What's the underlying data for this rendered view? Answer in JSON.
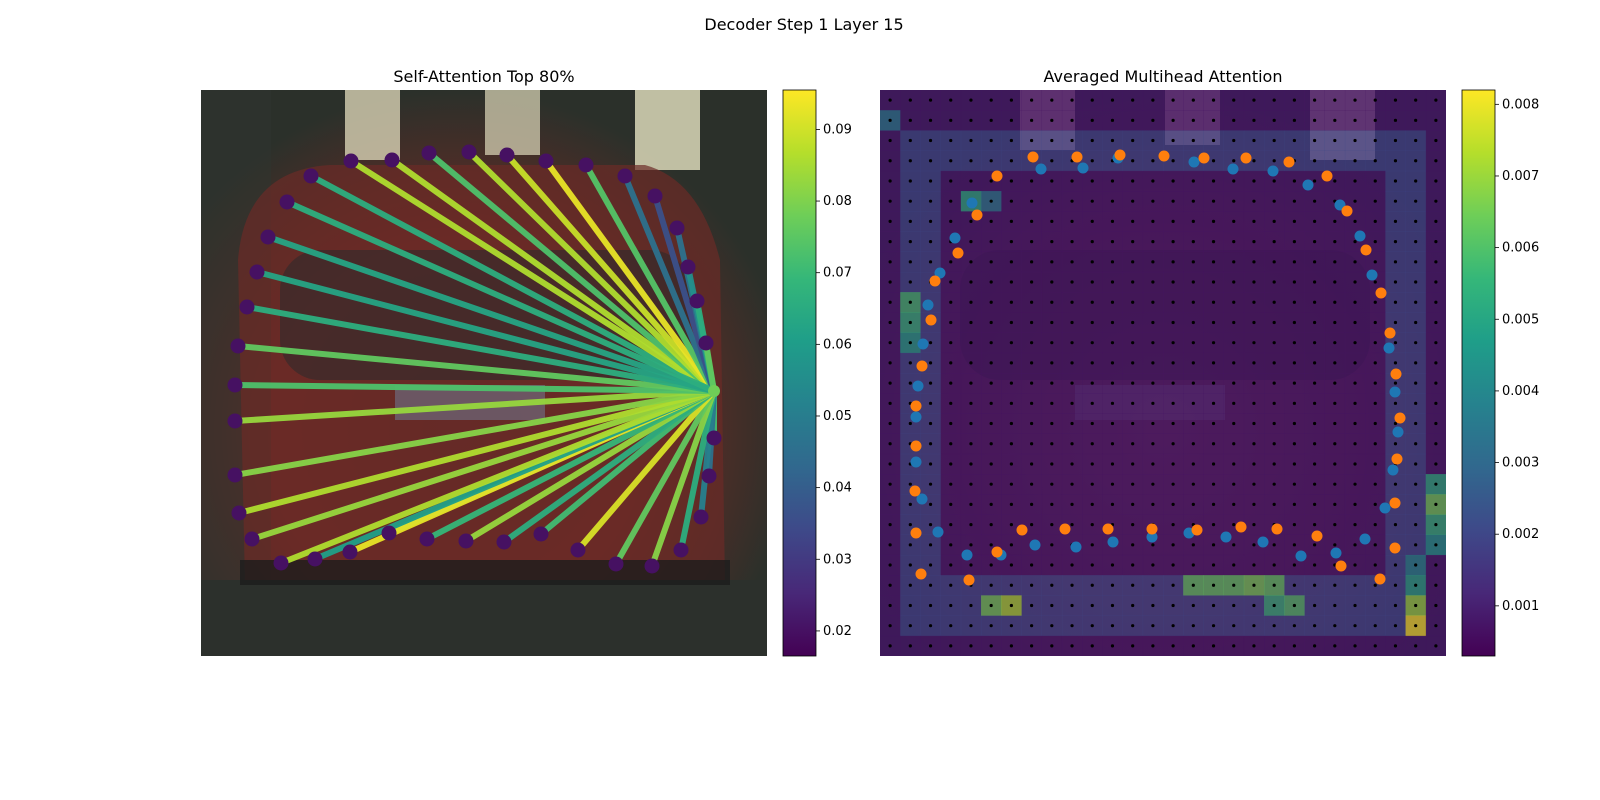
{
  "figure": {
    "suptitle": "Decoder Step 1 Layer 15"
  },
  "colors": {
    "viridis": [
      "#440154",
      "#482878",
      "#3e4989",
      "#31688e",
      "#26828e",
      "#1f9e89",
      "#35b779",
      "#6ece58",
      "#b5de2b",
      "#fde725"
    ],
    "orange_points": "#ff7f0e",
    "blue_points": "#1f77b4",
    "grid_dots": "#000000"
  },
  "chart_data": [
    {
      "type": "line",
      "title": "Self-Attention Top 80%",
      "description_of_marks": "edges from a single anchor vertex to polygon vertices, colored by attention weight",
      "colorbar": {
        "min": 0.0165,
        "max": 0.0955,
        "ticks": [
          "0.02",
          "0.03",
          "0.04",
          "0.05",
          "0.06",
          "0.07",
          "0.08",
          "0.09"
        ],
        "tick_values": [
          0.02,
          0.03,
          0.04,
          0.05,
          0.06,
          0.07,
          0.08,
          0.09
        ]
      },
      "anchor": [
        513,
        301
      ],
      "vertices": [
        [
          110,
          86
        ],
        [
          150,
          71
        ],
        [
          191,
          70
        ],
        [
          228,
          63
        ],
        [
          268,
          62
        ],
        [
          306,
          65
        ],
        [
          345,
          71
        ],
        [
          385,
          75
        ],
        [
          424,
          86
        ],
        [
          454,
          106
        ],
        [
          476,
          138
        ],
        [
          487,
          177
        ],
        [
          496,
          211
        ],
        [
          505,
          253
        ],
        [
          513,
          301
        ],
        [
          513,
          348
        ],
        [
          508,
          386
        ],
        [
          500,
          427
        ],
        [
          480,
          460
        ],
        [
          451,
          476
        ],
        [
          415,
          474
        ],
        [
          377,
          460
        ],
        [
          340,
          444
        ],
        [
          303,
          452
        ],
        [
          265,
          451
        ],
        [
          226,
          449
        ],
        [
          188,
          443
        ],
        [
          149,
          462
        ],
        [
          114,
          469
        ],
        [
          80,
          473
        ],
        [
          51,
          449
        ],
        [
          38,
          423
        ],
        [
          34,
          385
        ],
        [
          34,
          331
        ],
        [
          34,
          295
        ],
        [
          37,
          256
        ],
        [
          46,
          217
        ],
        [
          56,
          182
        ],
        [
          67,
          147
        ],
        [
          86,
          112
        ]
      ],
      "edge_weights": [
        0.066,
        0.086,
        0.086,
        0.073,
        0.086,
        0.089,
        0.093,
        0.074,
        0.046,
        0.036,
        0.046,
        0.056,
        0.066,
        0.076,
        0.076,
        0.071,
        0.046,
        0.051,
        0.066,
        0.081,
        0.076,
        0.091,
        0.071,
        0.066,
        0.083,
        0.069,
        0.066,
        0.093,
        0.061,
        0.086,
        0.083,
        0.086,
        0.081,
        0.083,
        0.073,
        0.076,
        0.066,
        0.063,
        0.063,
        0.066
      ],
      "vertex_weight": 0.02
    },
    {
      "type": "heatmap",
      "title": "Averaged Multihead Attention",
      "colorbar": {
        "min": 0.0003,
        "max": 0.0082,
        "ticks": [
          "0.001",
          "0.002",
          "0.003",
          "0.004",
          "0.005",
          "0.006",
          "0.007",
          "0.008"
        ],
        "tick_values": [
          0.001,
          0.002,
          0.003,
          0.004,
          0.005,
          0.006,
          0.007,
          0.008
        ]
      },
      "grid_size": 28,
      "background_level": 0.0007,
      "ring_level": 0.002,
      "hot_cells": [
        {
          "row": 1,
          "col": 0,
          "value": 0.0035
        },
        {
          "row": 5,
          "col": 4,
          "value": 0.0052
        },
        {
          "row": 5,
          "col": 5,
          "value": 0.0035
        },
        {
          "row": 10,
          "col": 1,
          "value": 0.0058
        },
        {
          "row": 11,
          "col": 1,
          "value": 0.0055
        },
        {
          "row": 12,
          "col": 1,
          "value": 0.0048
        },
        {
          "row": 19,
          "col": 27,
          "value": 0.0052
        },
        {
          "row": 20,
          "col": 27,
          "value": 0.0065
        },
        {
          "row": 21,
          "col": 27,
          "value": 0.0055
        },
        {
          "row": 22,
          "col": 27,
          "value": 0.0045
        },
        {
          "row": 23,
          "col": 26,
          "value": 0.004
        },
        {
          "row": 24,
          "col": 26,
          "value": 0.005
        },
        {
          "row": 25,
          "col": 26,
          "value": 0.007
        },
        {
          "row": 25,
          "col": 6,
          "value": 0.0072
        },
        {
          "row": 25,
          "col": 5,
          "value": 0.0065
        },
        {
          "row": 24,
          "col": 15,
          "value": 0.0062
        },
        {
          "row": 24,
          "col": 16,
          "value": 0.0062
        },
        {
          "row": 24,
          "col": 17,
          "value": 0.0062
        },
        {
          "row": 24,
          "col": 18,
          "value": 0.0065
        },
        {
          "row": 24,
          "col": 19,
          "value": 0.0062
        },
        {
          "row": 25,
          "col": 19,
          "value": 0.0055
        },
        {
          "row": 25,
          "col": 20,
          "value": 0.006
        },
        {
          "row": 26,
          "col": 26,
          "value": 0.0082
        }
      ],
      "blue_points": [
        [
          92,
          113
        ],
        [
          161,
          79
        ],
        [
          203,
          78
        ],
        [
          238,
          68
        ],
        [
          314,
          72
        ],
        [
          353,
          79
        ],
        [
          393,
          81
        ],
        [
          428,
          95
        ],
        [
          460,
          115
        ],
        [
          480,
          146
        ],
        [
          492,
          185
        ],
        [
          509,
          258
        ],
        [
          515,
          302
        ],
        [
          518,
          342
        ],
        [
          513,
          380
        ],
        [
          505,
          418
        ],
        [
          485,
          449
        ],
        [
          456,
          463
        ],
        [
          421,
          466
        ],
        [
          383,
          452
        ],
        [
          346,
          447
        ],
        [
          309,
          443
        ],
        [
          272,
          447
        ],
        [
          233,
          452
        ],
        [
          196,
          457
        ],
        [
          155,
          455
        ],
        [
          121,
          465
        ],
        [
          87,
          465
        ],
        [
          58,
          442
        ],
        [
          42,
          409
        ],
        [
          36,
          372
        ],
        [
          36,
          327
        ],
        [
          38,
          296
        ],
        [
          43,
          254
        ],
        [
          48,
          215
        ],
        [
          60,
          183
        ],
        [
          75,
          148
        ]
      ],
      "orange_points": [
        [
          117,
          86
        ],
        [
          153,
          67
        ],
        [
          197,
          67
        ],
        [
          240,
          65
        ],
        [
          284,
          66
        ],
        [
          324,
          68
        ],
        [
          366,
          68
        ],
        [
          409,
          72
        ],
        [
          447,
          86
        ],
        [
          467,
          121
        ],
        [
          486,
          160
        ],
        [
          501,
          203
        ],
        [
          510,
          243
        ],
        [
          516,
          284
        ],
        [
          520,
          328
        ],
        [
          517,
          369
        ],
        [
          515,
          413
        ],
        [
          515,
          458
        ],
        [
          500,
          489
        ],
        [
          461,
          476
        ],
        [
          437,
          446
        ],
        [
          397,
          439
        ],
        [
          361,
          437
        ],
        [
          317,
          440
        ],
        [
          272,
          439
        ],
        [
          228,
          439
        ],
        [
          185,
          439
        ],
        [
          142,
          440
        ],
        [
          117,
          462
        ],
        [
          89,
          490
        ],
        [
          41,
          484
        ],
        [
          36,
          443
        ],
        [
          35,
          401
        ],
        [
          36,
          356
        ],
        [
          36,
          316
        ],
        [
          42,
          276
        ],
        [
          51,
          230
        ],
        [
          55,
          191
        ],
        [
          78,
          163
        ],
        [
          97,
          125
        ]
      ],
      "dots_grid": 28
    }
  ]
}
